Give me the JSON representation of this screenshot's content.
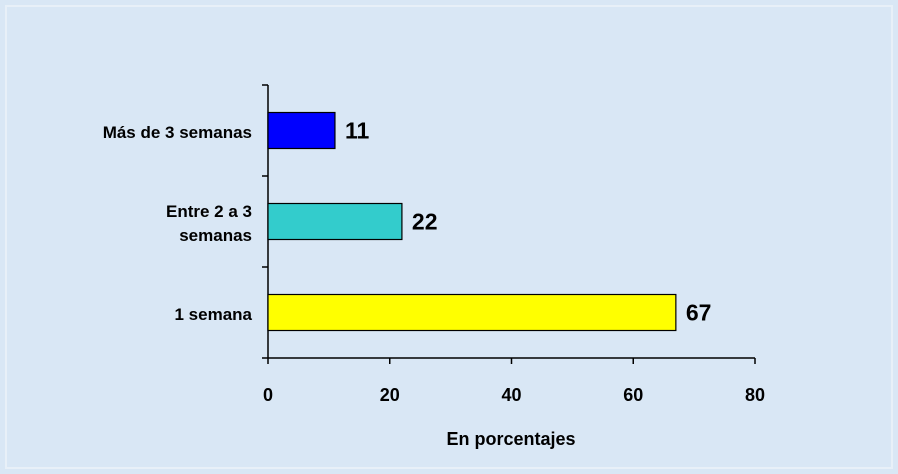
{
  "chart_data": {
    "type": "bar",
    "orientation": "horizontal",
    "categories": [
      "Más de 3 semanas",
      "Entre 2 a 3 semanas",
      "1 semana"
    ],
    "values": [
      11,
      22,
      67
    ],
    "colors": [
      "#0000ff",
      "#33cccc",
      "#ffff00"
    ],
    "xlabel": "En porcentajes",
    "xlim": [
      0,
      80
    ],
    "xticks": [
      0,
      20,
      40,
      60,
      80
    ]
  }
}
